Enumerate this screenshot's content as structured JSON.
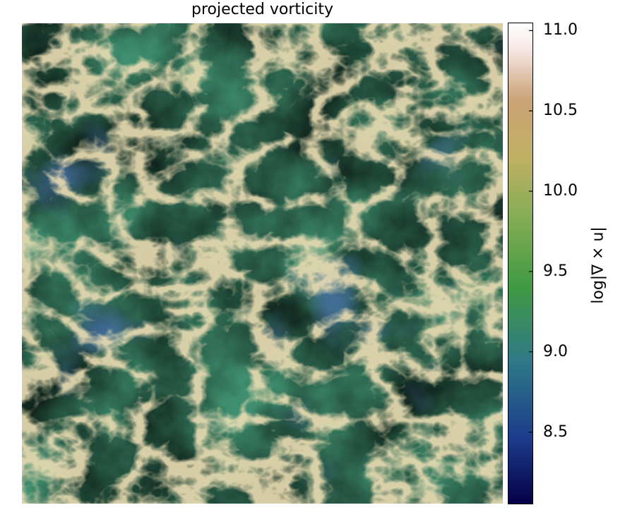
{
  "chart_data": {
    "type": "heatmap",
    "title": "projected vorticity",
    "xlabel": "",
    "ylabel": "",
    "colorbar": {
      "label": "log|∇ × u|",
      "range": [
        8.05,
        11.05
      ],
      "ticks": [
        8.5,
        9.0,
        9.5,
        10.0,
        10.5,
        11.0
      ],
      "tick_labels": [
        "8.5",
        "9.0",
        "9.5",
        "10.0",
        "10.5",
        "11.0"
      ],
      "colormap": "gist_earth",
      "colors": [
        "#050047",
        "#1c3d8c",
        "#2f7a86",
        "#3f9a43",
        "#86ad55",
        "#c0b163",
        "#caa276",
        "#f7eaea",
        "#ffffff"
      ]
    },
    "grid": false,
    "legend": "none"
  }
}
